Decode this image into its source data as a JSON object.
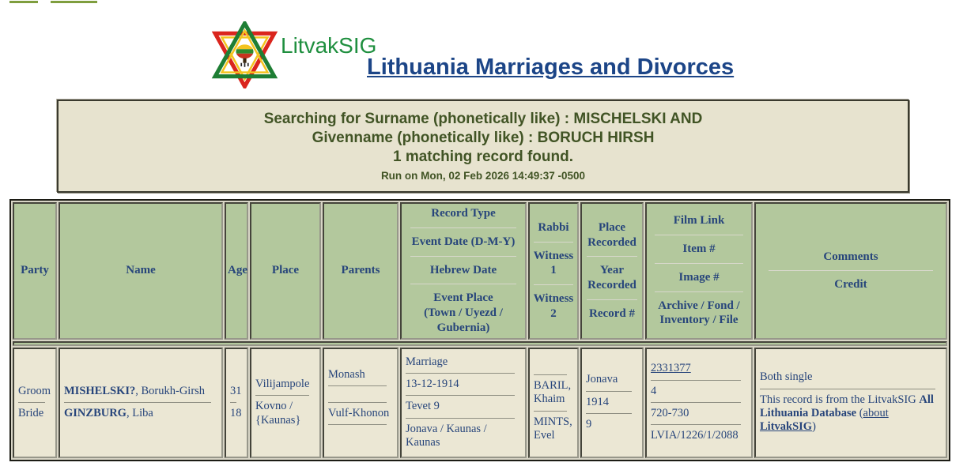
{
  "theme": {
    "navy": "#27457b",
    "title-blue": "#1c4587",
    "green-text": "#415425",
    "logo-green": "#1f8f3f",
    "header-bg": "#b3c89d",
    "cell-bg": "#ebe7d4",
    "box-bg": "#e7e3cf",
    "table-gap": "#d8d5c6",
    "bar-green": "#7f9e3e"
  },
  "header": {
    "logo_text": "LitvakSIG",
    "title": "Lithuania Marriages and Divorces"
  },
  "search_summary": {
    "line1": "Searching for Surname (phonetically like) : MISCHELSKI AND",
    "line2": "Givenname (phonetically like) : BORUCH HIRSH",
    "result_line": "1 matching record found.",
    "run_line": "Run on Mon, 02 Feb 2026 14:49:37 -0500"
  },
  "table": {
    "columns": [
      {
        "key": "party",
        "header_parts": [
          "Party"
        ]
      },
      {
        "key": "name",
        "header_parts": [
          "Name"
        ]
      },
      {
        "key": "age",
        "header_parts": [
          "Age"
        ]
      },
      {
        "key": "place",
        "header_parts": [
          "Place"
        ]
      },
      {
        "key": "parents",
        "header_parts": [
          "Parents"
        ]
      },
      {
        "key": "record",
        "header_parts": [
          "Record Type",
          "Event Date (D-M-Y)",
          "Hebrew Date",
          "Event Place\n(Town / Uyezd /\nGubernia)"
        ]
      },
      {
        "key": "rabbi-witnesses",
        "header_parts": [
          "Rabbi",
          "Witness\n1",
          "Witness\n2"
        ]
      },
      {
        "key": "recorded",
        "header_parts": [
          "Place\nRecorded",
          "Year\nRecorded",
          "Record #"
        ]
      },
      {
        "key": "film",
        "header_parts": [
          "Film Link",
          "Item #",
          "Image #",
          "Archive / Fond /\nInventory / File"
        ]
      },
      {
        "key": "comments",
        "header_parts": [
          "Comments",
          "Credit"
        ]
      }
    ],
    "rows": [
      {
        "cells": [
          [
            [
              {
                "text": "Groom"
              }
            ],
            [
              {
                "text": "Bride"
              }
            ]
          ],
          [
            [
              {
                "text": "MISHELSKI?",
                "bold": true
              },
              {
                "text": ", Borukh-Girsh"
              }
            ],
            [
              {
                "text": "GINZBURG",
                "bold": true
              },
              {
                "text": ", Liba"
              }
            ]
          ],
          [
            [
              {
                "text": "31"
              }
            ],
            [
              {
                "text": "18"
              }
            ]
          ],
          [
            [
              {
                "text": "Vilijampole"
              }
            ],
            [
              {
                "text": "Kovno /\n{Kaunas}"
              }
            ]
          ],
          [
            [
              {
                "text": "Monash"
              }
            ],
            [],
            [
              {
                "text": "Vulf-Khonon"
              }
            ],
            []
          ],
          [
            [
              {
                "text": "Marriage"
              }
            ],
            [
              {
                "text": "13-12-1914"
              }
            ],
            [
              {
                "text": "Tevet 9"
              }
            ],
            [
              {
                "text": "Jonava / Kaunas /\nKaunas"
              }
            ]
          ],
          [
            [],
            [
              {
                "text": "BARIL,\nKhaim"
              }
            ],
            [
              {
                "text": "MINTS,\nEvel"
              }
            ]
          ],
          [
            [
              {
                "text": "Jonava"
              }
            ],
            [
              {
                "text": "1914"
              }
            ],
            [
              {
                "text": "9"
              }
            ]
          ],
          [
            [
              {
                "text": "2331377",
                "link": true
              }
            ],
            [
              {
                "text": "4"
              }
            ],
            [
              {
                "text": "720-730"
              }
            ],
            [
              {
                "text": "LVIA/1226/1/2088"
              }
            ]
          ],
          [
            [
              {
                "text": "Both single"
              }
            ],
            [
              {
                "text": "This record is from the LitvakSIG "
              },
              {
                "text": "All Lithuania Database",
                "bold": true
              },
              {
                "text": " ("
              },
              {
                "text": "about ",
                "link": true
              },
              {
                "text": "LitvakSIG",
                "bold": true,
                "link": true
              },
              {
                "text": ")"
              }
            ]
          ]
        ]
      }
    ]
  }
}
